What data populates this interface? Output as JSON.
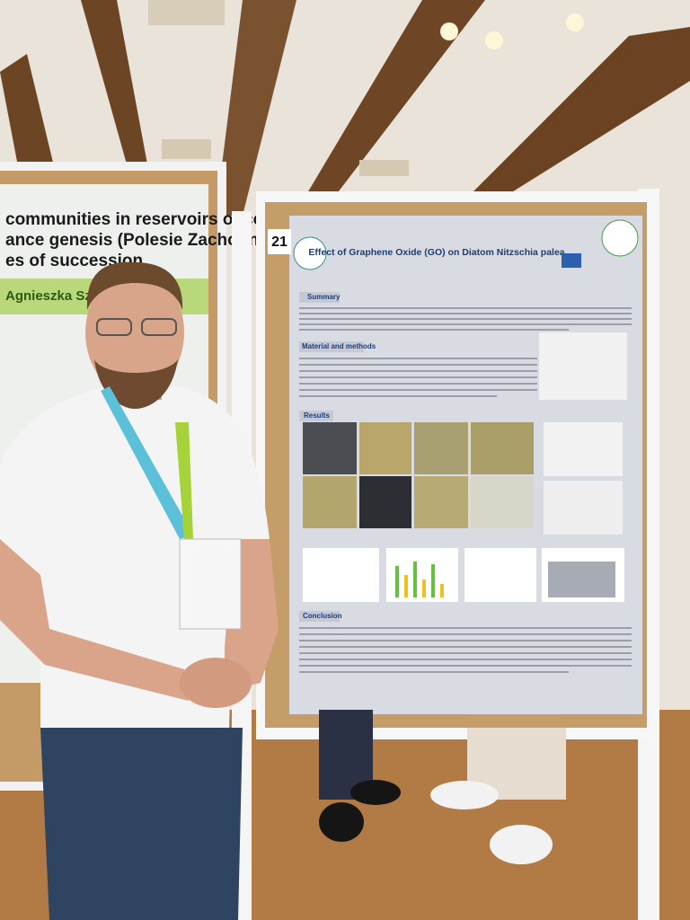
{
  "left_poster": {
    "title_lines": [
      "communities in reservoirs of coal",
      "ance genesis (Polesie Zachodnie) at",
      "es of succession"
    ],
    "author": "Agnieszka Szczurowska"
  },
  "right_poster": {
    "number": "21",
    "title": "Effect of Graphene Oxide (GO) on Diatom Nitzschia palea",
    "sections": [
      "Summary",
      "Material and methods",
      "Results",
      "Conclusion"
    ]
  }
}
